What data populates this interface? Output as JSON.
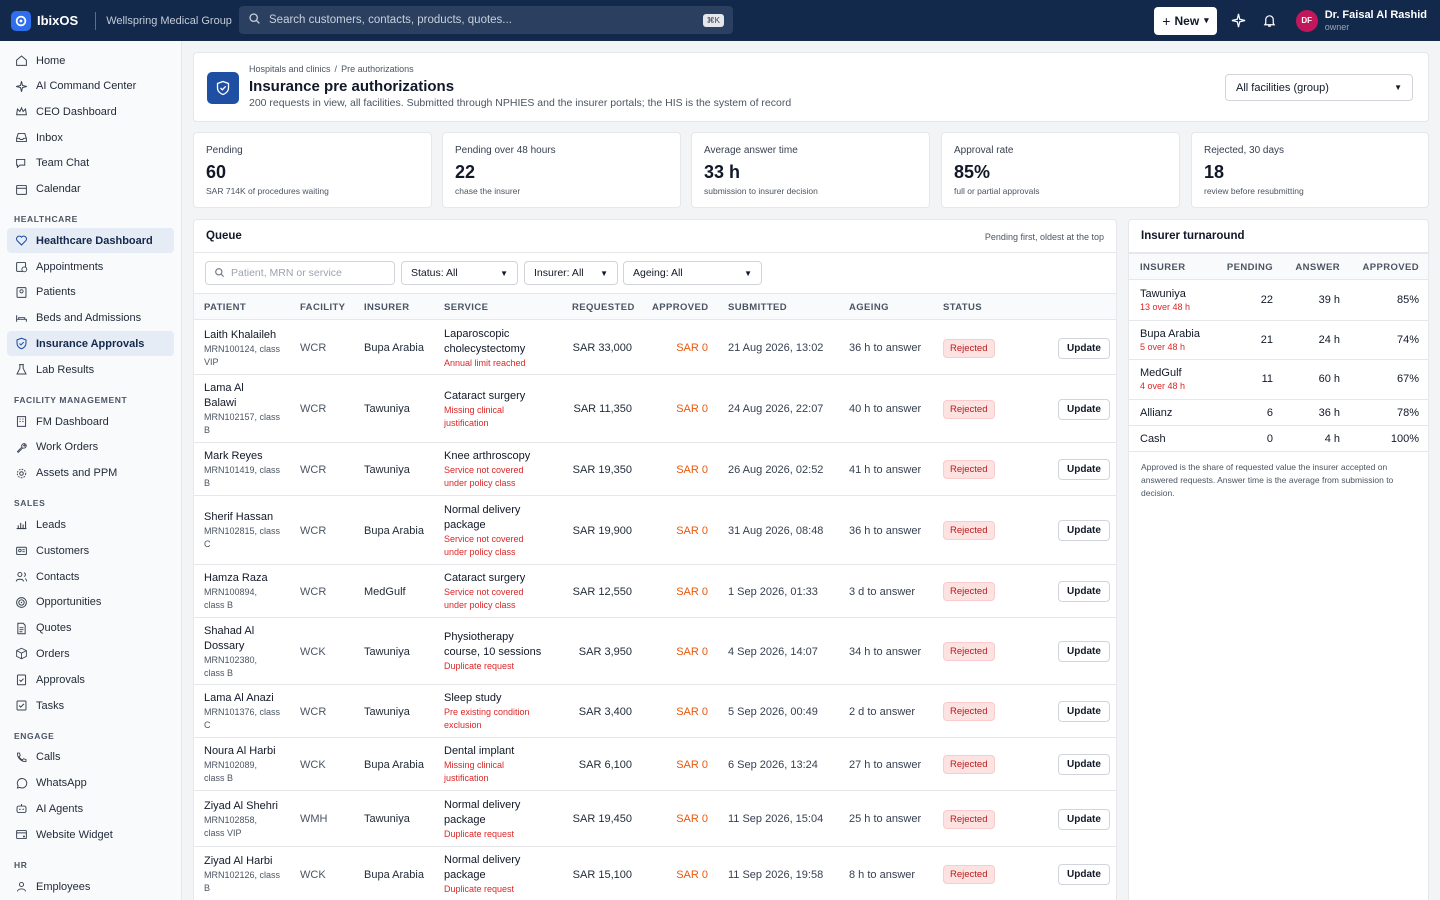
{
  "topbar": {
    "brand": "IbixOS",
    "org": "Wellspring Medical Group",
    "search_placeholder": "Search customers, contacts, products, quotes...",
    "shortcut": "⌘K",
    "new_label": "New",
    "user_initials": "DF",
    "user_name": "Dr. Faisal Al Rashid",
    "user_role": "owner"
  },
  "sidebar": {
    "top_items": [
      {
        "label": "Home",
        "icon": "home-icon"
      },
      {
        "label": "AI Command Center",
        "icon": "sparkle-icon"
      },
      {
        "label": "CEO Dashboard",
        "icon": "crown-icon"
      },
      {
        "label": "Inbox",
        "icon": "inbox-icon"
      },
      {
        "label": "Team Chat",
        "icon": "chat-icon"
      },
      {
        "label": "Calendar",
        "icon": "calendar-icon"
      }
    ],
    "sections": [
      {
        "title": "HEALTHCARE",
        "items": [
          {
            "label": "Healthcare Dashboard",
            "icon": "heart-icon",
            "active": true
          },
          {
            "label": "Appointments",
            "icon": "calendar-clock-icon"
          },
          {
            "label": "Patients",
            "icon": "patient-icon"
          },
          {
            "label": "Beds and Admissions",
            "icon": "bed-icon"
          },
          {
            "label": "Insurance Approvals",
            "icon": "shield-icon",
            "active": true
          },
          {
            "label": "Lab Results",
            "icon": "flask-icon"
          }
        ]
      },
      {
        "title": "FACILITY MANAGEMENT",
        "items": [
          {
            "label": "FM Dashboard",
            "icon": "building-icon"
          },
          {
            "label": "Work Orders",
            "icon": "wrench-icon"
          },
          {
            "label": "Assets and PPM",
            "icon": "gear-icon"
          }
        ]
      },
      {
        "title": "SALES",
        "items": [
          {
            "label": "Leads",
            "icon": "leads-icon"
          },
          {
            "label": "Customers",
            "icon": "customers-icon"
          },
          {
            "label": "Contacts",
            "icon": "contacts-icon"
          },
          {
            "label": "Opportunities",
            "icon": "target-icon"
          },
          {
            "label": "Quotes",
            "icon": "document-icon"
          },
          {
            "label": "Orders",
            "icon": "box-icon"
          },
          {
            "label": "Approvals",
            "icon": "clipboard-check-icon"
          },
          {
            "label": "Tasks",
            "icon": "checkbox-icon"
          }
        ]
      },
      {
        "title": "ENGAGE",
        "items": [
          {
            "label": "Calls",
            "icon": "phone-icon"
          },
          {
            "label": "WhatsApp",
            "icon": "whatsapp-icon"
          },
          {
            "label": "AI Agents",
            "icon": "bot-icon"
          },
          {
            "label": "Website Widget",
            "icon": "widget-icon"
          }
        ]
      },
      {
        "title": "HR",
        "items": [
          {
            "label": "Employees",
            "icon": "employees-icon"
          }
        ]
      }
    ]
  },
  "header": {
    "breadcrumb": [
      "Hospitals and clinics",
      "Pre authorizations"
    ],
    "title": "Insurance pre authorizations",
    "subtitle": "200 requests in view, all facilities. Submitted through NPHIES and the insurer portals; the HIS is the system of record",
    "facility_filter": "All facilities (group)"
  },
  "kpis": [
    {
      "label": "Pending",
      "value": "60",
      "note": "SAR 714K of procedures waiting"
    },
    {
      "label": "Pending over 48 hours",
      "value": "22",
      "note": "chase the insurer"
    },
    {
      "label": "Average answer time",
      "value": "33 h",
      "note": "submission to insurer decision"
    },
    {
      "label": "Approval rate",
      "value": "85%",
      "note": "full or partial approvals"
    },
    {
      "label": "Rejected, 30 days",
      "value": "18",
      "note": "review before resubmitting"
    }
  ],
  "queue": {
    "title": "Queue",
    "hint": "Pending first, oldest at the top",
    "search_placeholder": "Patient, MRN or service",
    "filters": {
      "status": "Status: All",
      "insurer": "Insurer: All",
      "ageing": "Ageing: All"
    },
    "columns": [
      "PATIENT",
      "FACILITY",
      "INSURER",
      "SERVICE",
      "REQUESTED",
      "APPROVED",
      "SUBMITTED",
      "AGEING",
      "STATUS"
    ],
    "action_label": "Update",
    "rows": [
      {
        "name": [
          "Laith Khalaileh"
        ],
        "meta": [
          "MRN100124, class",
          "VIP"
        ],
        "facility": "WCR",
        "insurer": "Bupa Arabia",
        "service": [
          "Laparoscopic",
          "cholecystectomy"
        ],
        "reason": [
          "Annual limit reached"
        ],
        "requested": "SAR 33,000",
        "approved": "SAR 0",
        "submitted": "21 Aug 2026, 13:02",
        "ageing": "36 h to answer",
        "status": "Rejected"
      },
      {
        "name": [
          "Lama Al",
          "Balawi"
        ],
        "meta": [
          "MRN102157, class",
          "B"
        ],
        "facility": "WCR",
        "insurer": "Tawuniya",
        "service": [
          "Cataract surgery"
        ],
        "reason": [
          "Missing clinical",
          "justification"
        ],
        "requested": "SAR 11,350",
        "approved": "SAR 0",
        "submitted": "24 Aug 2026, 22:07",
        "ageing": "40 h to answer",
        "status": "Rejected"
      },
      {
        "name": [
          "Mark Reyes"
        ],
        "meta": [
          "MRN101419, class",
          "B"
        ],
        "facility": "WCR",
        "insurer": "Tawuniya",
        "service": [
          "Knee arthroscopy"
        ],
        "reason": [
          "Service not covered",
          "under policy class"
        ],
        "requested": "SAR 19,350",
        "approved": "SAR 0",
        "submitted": "26 Aug 2026, 02:52",
        "ageing": "41 h to answer",
        "status": "Rejected"
      },
      {
        "name": [
          "Sherif Hassan"
        ],
        "meta": [
          "MRN102815, class",
          "C"
        ],
        "facility": "WCR",
        "insurer": "Bupa Arabia",
        "service": [
          "Normal delivery",
          "package"
        ],
        "reason": [
          "Service not covered",
          "under policy class"
        ],
        "requested": "SAR 19,900",
        "approved": "SAR 0",
        "submitted": "31 Aug 2026, 08:48",
        "ageing": "36 h to answer",
        "status": "Rejected"
      },
      {
        "name": [
          "Hamza Raza"
        ],
        "meta": [
          "MRN100894,",
          "class B"
        ],
        "facility": "WCR",
        "insurer": "MedGulf",
        "service": [
          "Cataract surgery"
        ],
        "reason": [
          "Service not covered",
          "under policy class"
        ],
        "requested": "SAR 12,550",
        "approved": "SAR 0",
        "submitted": "1 Sep 2026, 01:33",
        "ageing": "3 d to answer",
        "status": "Rejected"
      },
      {
        "name": [
          "Shahad Al",
          "Dossary"
        ],
        "meta": [
          "MRN102380,",
          "class B"
        ],
        "facility": "WCK",
        "insurer": "Tawuniya",
        "service": [
          "Physiotherapy",
          "course, 10 sessions"
        ],
        "reason": [
          "Duplicate request"
        ],
        "requested": "SAR 3,950",
        "approved": "SAR 0",
        "submitted": "4 Sep 2026, 14:07",
        "ageing": "34 h to answer",
        "status": "Rejected"
      },
      {
        "name": [
          "Lama Al Anazi"
        ],
        "meta": [
          "MRN101376, class",
          "C"
        ],
        "facility": "WCR",
        "insurer": "Tawuniya",
        "service": [
          "Sleep study"
        ],
        "reason": [
          "Pre existing condition",
          "exclusion"
        ],
        "requested": "SAR 3,400",
        "approved": "SAR 0",
        "submitted": "5 Sep 2026, 00:49",
        "ageing": "2 d to answer",
        "status": "Rejected"
      },
      {
        "name": [
          "Noura Al Harbi"
        ],
        "meta": [
          "MRN102089,",
          "class B"
        ],
        "facility": "WCK",
        "insurer": "Bupa Arabia",
        "service": [
          "Dental implant"
        ],
        "reason": [
          "Missing clinical",
          "justification"
        ],
        "requested": "SAR 6,100",
        "approved": "SAR 0",
        "submitted": "6 Sep 2026, 13:24",
        "ageing": "27 h to answer",
        "status": "Rejected"
      },
      {
        "name": [
          "Ziyad Al Shehri"
        ],
        "meta": [
          "MRN102858,",
          "class VIP"
        ],
        "facility": "WMH",
        "insurer": "Tawuniya",
        "service": [
          "Normal delivery",
          "package"
        ],
        "reason": [
          "Duplicate request"
        ],
        "requested": "SAR 19,450",
        "approved": "SAR 0",
        "submitted": "11 Sep 2026, 15:04",
        "ageing": "25 h to answer",
        "status": "Rejected"
      },
      {
        "name": [
          "Ziyad Al Harbi"
        ],
        "meta": [
          "MRN102126, class",
          "B"
        ],
        "facility": "WCK",
        "insurer": "Bupa Arabia",
        "service": [
          "Normal delivery",
          "package"
        ],
        "reason": [
          "Duplicate request"
        ],
        "requested": "SAR 15,100",
        "approved": "SAR 0",
        "submitted": "11 Sep 2026, 19:58",
        "ageing": "8 h to answer",
        "status": "Rejected"
      }
    ]
  },
  "turnaround": {
    "title": "Insurer turnaround",
    "columns": [
      "INSURER",
      "PENDING",
      "ANSWER",
      "APPROVED"
    ],
    "rows": [
      {
        "insurer": "Tawuniya",
        "over": "13 over 48 h",
        "pending": "22",
        "answer": "39 h",
        "approved": "85%"
      },
      {
        "insurer": "Bupa Arabia",
        "over": "5 over 48 h",
        "pending": "21",
        "answer": "24 h",
        "approved": "74%"
      },
      {
        "insurer": "MedGulf",
        "over": "4 over 48 h",
        "pending": "11",
        "answer": "60 h",
        "approved": "67%"
      },
      {
        "insurer": "Allianz",
        "over": "",
        "pending": "6",
        "answer": "36 h",
        "approved": "78%"
      },
      {
        "insurer": "Cash",
        "over": "",
        "pending": "0",
        "answer": "4 h",
        "approved": "100%"
      }
    ],
    "note": "Approved is the share of requested value the insurer accepted on answered requests. Answer time is the average from submission to decision."
  },
  "colors": {
    "topbar": "#13294b",
    "accent": "#1e4fa3",
    "rejected": "#b91c1c",
    "approved_zero": "#ea580c"
  }
}
